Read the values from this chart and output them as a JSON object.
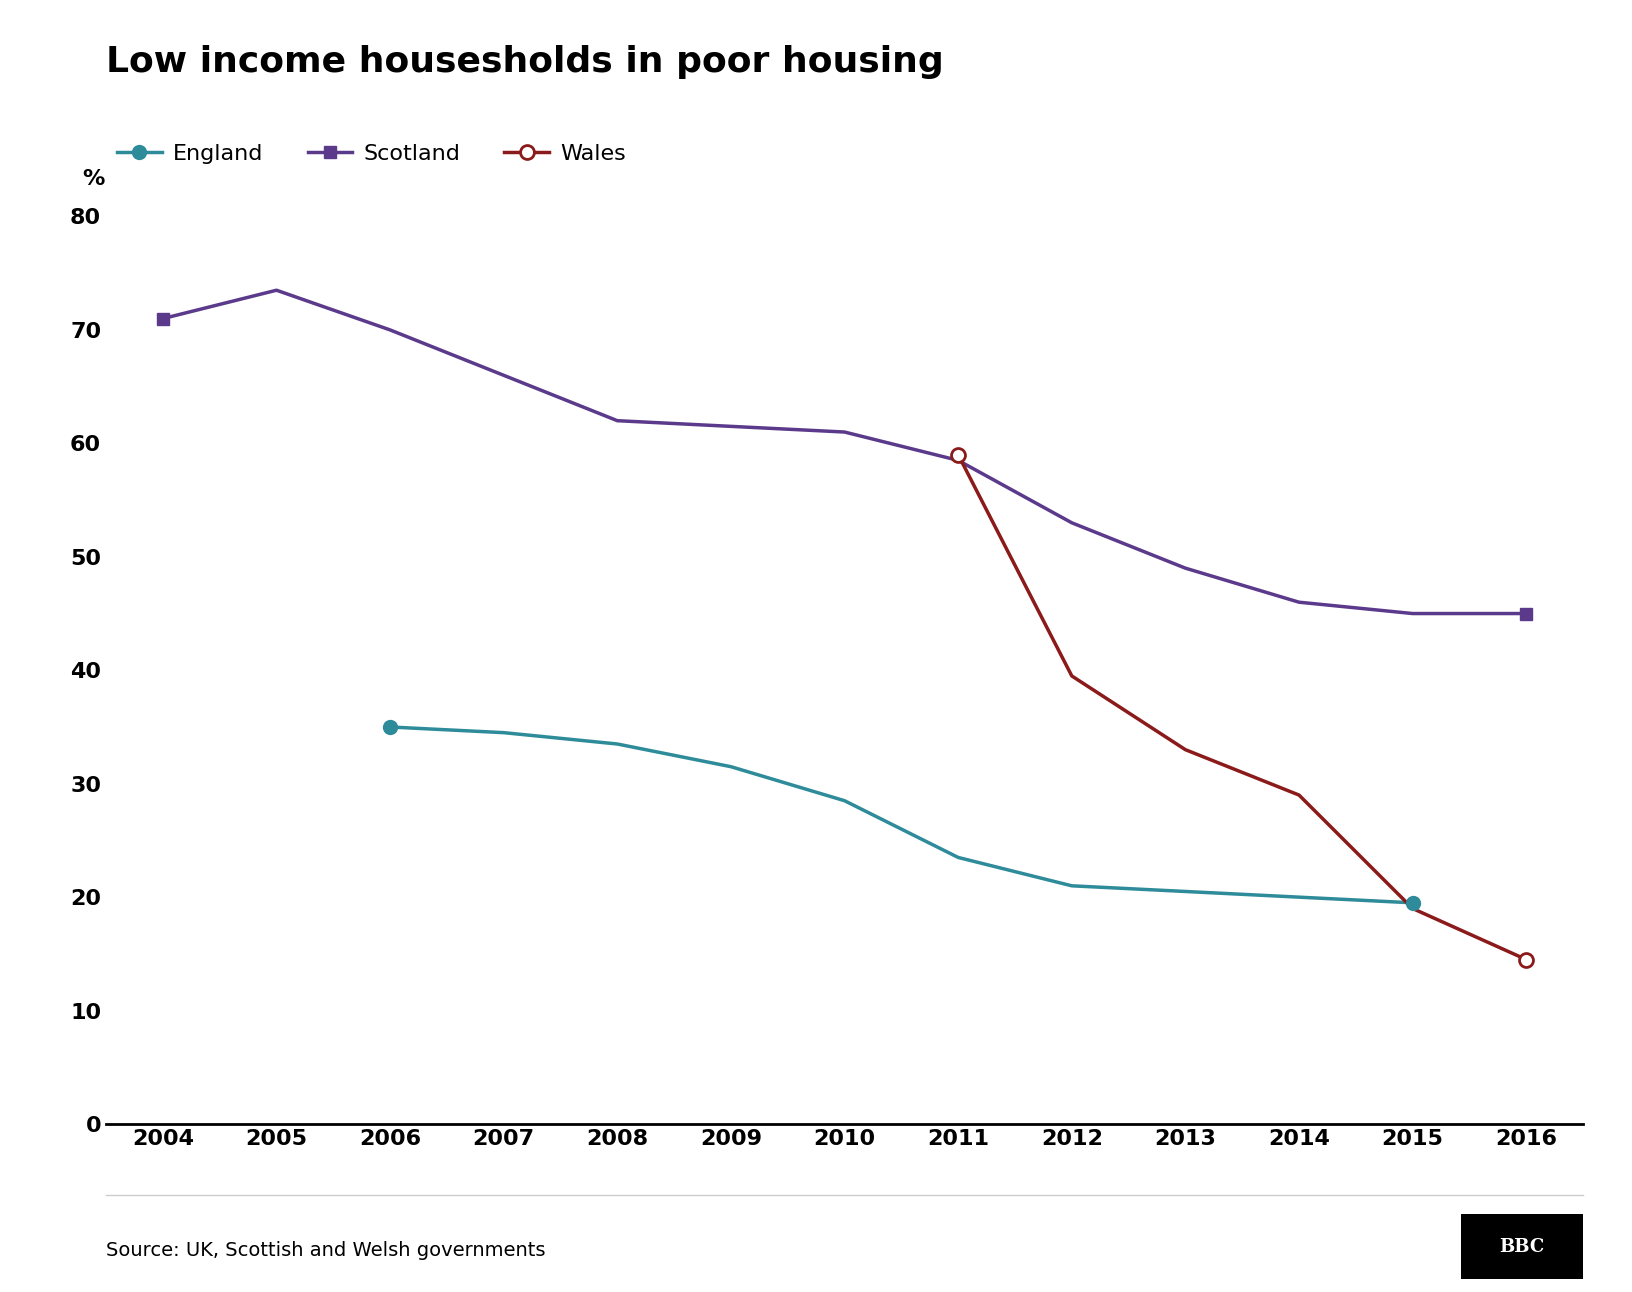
{
  "title": "Low income housesholds in poor housing",
  "source": "Source: UK, Scottish and Welsh governments",
  "ylabel": "%",
  "ylim": [
    0,
    82
  ],
  "yticks": [
    0,
    10,
    20,
    30,
    40,
    50,
    60,
    70,
    80
  ],
  "xlim": [
    2003.5,
    2016.5
  ],
  "xticks": [
    2004,
    2005,
    2006,
    2007,
    2008,
    2009,
    2010,
    2011,
    2012,
    2013,
    2014,
    2015,
    2016
  ],
  "england": {
    "x": [
      2006,
      2007,
      2008,
      2009,
      2010,
      2011,
      2012,
      2013,
      2014,
      2015
    ],
    "y": [
      35,
      34.5,
      33.5,
      31.5,
      28.5,
      23.5,
      21,
      20.5,
      20,
      19.5
    ],
    "color": "#2E8B9A",
    "label": "England",
    "linewidth": 2.5,
    "markersize": 10
  },
  "scotland": {
    "x": [
      2004,
      2005,
      2006,
      2007,
      2008,
      2009,
      2010,
      2011,
      2012,
      2013,
      2014,
      2015,
      2016
    ],
    "y": [
      71,
      73.5,
      70,
      66,
      62,
      61.5,
      61,
      58.5,
      53,
      49,
      46,
      45,
      45
    ],
    "color": "#5B3A8C",
    "label": "Scotland",
    "linewidth": 2.5,
    "markersize": 9
  },
  "wales": {
    "x": [
      2011,
      2012,
      2013,
      2014,
      2015,
      2016
    ],
    "y": [
      59,
      39.5,
      33,
      29,
      19,
      14.5
    ],
    "color": "#8B1A1A",
    "label": "Wales",
    "linewidth": 2.5,
    "markersize": 10
  },
  "background_color": "#ffffff",
  "title_fontsize": 26,
  "legend_fontsize": 16,
  "tick_fontsize": 16,
  "source_fontsize": 14
}
